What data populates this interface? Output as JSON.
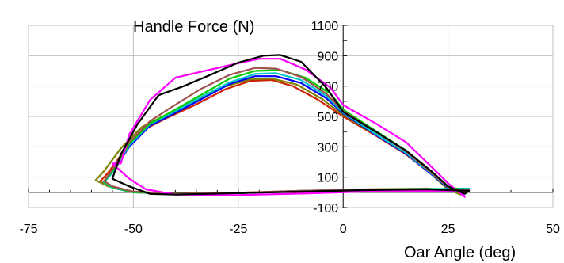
{
  "chart_data": {
    "type": "line",
    "ylabel": "Handle Force (N)",
    "xlabel": "Oar Angle (deg)",
    "xlim": [
      -75,
      50
    ],
    "ylim": [
      -100,
      1100
    ],
    "x_ticks": [
      -75,
      -50,
      -25,
      0,
      25,
      50
    ],
    "y_tick_labels": [
      -100,
      100,
      300,
      500,
      700,
      900,
      1100
    ],
    "y_grid": [
      100,
      300,
      500,
      700,
      900,
      1100
    ],
    "x_grid": [
      -50,
      -25,
      25
    ],
    "grid": true,
    "legend": "none",
    "series": [
      {
        "color": "#cc2200",
        "points": [
          [
            -58,
            70
          ],
          [
            -56,
            130
          ],
          [
            -52,
            280
          ],
          [
            -47,
            420
          ],
          [
            -42,
            490
          ],
          [
            -35,
            580
          ],
          [
            -28,
            680
          ],
          [
            -22,
            735
          ],
          [
            -17,
            740
          ],
          [
            -12,
            700
          ],
          [
            -6,
            610
          ],
          [
            0,
            500
          ],
          [
            8,
            370
          ],
          [
            15,
            250
          ],
          [
            21,
            120
          ],
          [
            25,
            30
          ],
          [
            29,
            -5
          ],
          [
            30,
            15
          ],
          [
            20,
            20
          ],
          [
            5,
            15
          ],
          [
            -10,
            5
          ],
          [
            -25,
            -5
          ],
          [
            -40,
            -10
          ],
          [
            -50,
            5
          ],
          [
            -55,
            35
          ],
          [
            -58,
            70
          ]
        ]
      },
      {
        "color": "#808000",
        "points": [
          [
            -59,
            80
          ],
          [
            -57,
            140
          ],
          [
            -53,
            290
          ],
          [
            -48,
            430
          ],
          [
            -43,
            500
          ],
          [
            -36,
            590
          ],
          [
            -29,
            690
          ],
          [
            -22,
            745
          ],
          [
            -17,
            750
          ],
          [
            -11,
            710
          ],
          [
            -5,
            615
          ],
          [
            0,
            510
          ],
          [
            8,
            375
          ],
          [
            15,
            255
          ],
          [
            21,
            120
          ],
          [
            25,
            20
          ],
          [
            28,
            -15
          ],
          [
            29,
            10
          ],
          [
            20,
            25
          ],
          [
            5,
            20
          ],
          [
            -10,
            10
          ],
          [
            -25,
            -3
          ],
          [
            -40,
            -10
          ],
          [
            -51,
            5
          ],
          [
            -56,
            40
          ],
          [
            -59,
            80
          ]
        ]
      },
      {
        "color": "#0000ff",
        "points": [
          [
            -57,
            70
          ],
          [
            -55,
            130
          ],
          [
            -51,
            300
          ],
          [
            -46,
            440
          ],
          [
            -41,
            510
          ],
          [
            -34,
            610
          ],
          [
            -27,
            715
          ],
          [
            -21,
            765
          ],
          [
            -16,
            765
          ],
          [
            -10,
            720
          ],
          [
            -4,
            620
          ],
          [
            0,
            520
          ],
          [
            8,
            375
          ],
          [
            15,
            255
          ],
          [
            21,
            120
          ],
          [
            25,
            30
          ],
          [
            29,
            5
          ],
          [
            30,
            20
          ],
          [
            20,
            20
          ],
          [
            5,
            18
          ],
          [
            -10,
            8
          ],
          [
            -25,
            -5
          ],
          [
            -40,
            -12
          ],
          [
            -50,
            0
          ],
          [
            -55,
            30
          ],
          [
            -57,
            70
          ]
        ]
      },
      {
        "color": "#00c8c8",
        "points": [
          [
            -57,
            65
          ],
          [
            -55,
            130
          ],
          [
            -51,
            310
          ],
          [
            -46,
            450
          ],
          [
            -41,
            520
          ],
          [
            -34,
            625
          ],
          [
            -27,
            725
          ],
          [
            -21,
            780
          ],
          [
            -16,
            785
          ],
          [
            -10,
            740
          ],
          [
            -4,
            635
          ],
          [
            0,
            525
          ],
          [
            8,
            380
          ],
          [
            15,
            260
          ],
          [
            21,
            125
          ],
          [
            25,
            35
          ],
          [
            29,
            10
          ],
          [
            30,
            25
          ],
          [
            20,
            22
          ],
          [
            5,
            18
          ],
          [
            -10,
            10
          ],
          [
            -25,
            -5
          ],
          [
            -40,
            -12
          ],
          [
            -50,
            0
          ],
          [
            -55,
            30
          ],
          [
            -57,
            65
          ]
        ]
      },
      {
        "color": "#00cc00",
        "points": [
          [
            -57,
            70
          ],
          [
            -55,
            140
          ],
          [
            -51,
            320
          ],
          [
            -46,
            455
          ],
          [
            -41,
            530
          ],
          [
            -34,
            640
          ],
          [
            -27,
            750
          ],
          [
            -21,
            800
          ],
          [
            -15,
            805
          ],
          [
            -9,
            755
          ],
          [
            -3,
            650
          ],
          [
            0,
            545
          ],
          [
            8,
            400
          ],
          [
            15,
            275
          ],
          [
            21,
            130
          ],
          [
            25,
            40
          ],
          [
            29,
            10
          ],
          [
            30,
            20
          ],
          [
            20,
            20
          ],
          [
            5,
            15
          ],
          [
            -10,
            8
          ],
          [
            -25,
            -5
          ],
          [
            -40,
            -10
          ],
          [
            -50,
            0
          ],
          [
            -55,
            35
          ],
          [
            -57,
            70
          ]
        ]
      },
      {
        "color": "#a05050",
        "points": [
          [
            -57,
            75
          ],
          [
            -55,
            150
          ],
          [
            -51,
            330
          ],
          [
            -46,
            470
          ],
          [
            -41,
            560
          ],
          [
            -34,
            680
          ],
          [
            -27,
            775
          ],
          [
            -21,
            820
          ],
          [
            -16,
            815
          ],
          [
            -10,
            760
          ],
          [
            -4,
            650
          ],
          [
            0,
            535
          ],
          [
            8,
            395
          ],
          [
            15,
            270
          ],
          [
            21,
            130
          ],
          [
            25,
            35
          ],
          [
            29,
            0
          ],
          [
            30,
            15
          ],
          [
            20,
            20
          ],
          [
            5,
            18
          ],
          [
            -10,
            10
          ],
          [
            -25,
            -3
          ],
          [
            -40,
            -10
          ],
          [
            -50,
            5
          ],
          [
            -55,
            40
          ],
          [
            -57,
            75
          ]
        ]
      },
      {
        "color": "#ff00ff",
        "points": [
          [
            -53,
            190
          ],
          [
            -51,
            380
          ],
          [
            -46,
            610
          ],
          [
            -40,
            755
          ],
          [
            -33,
            800
          ],
          [
            -26,
            845
          ],
          [
            -20,
            880
          ],
          [
            -15,
            880
          ],
          [
            -9,
            810
          ],
          [
            -3,
            690
          ],
          [
            0,
            575
          ],
          [
            8,
            450
          ],
          [
            15,
            330
          ],
          [
            21,
            170
          ],
          [
            25,
            60
          ],
          [
            29,
            -30
          ],
          [
            28,
            10
          ],
          [
            20,
            10
          ],
          [
            5,
            5
          ],
          [
            -10,
            -8
          ],
          [
            -25,
            -18
          ],
          [
            -40,
            -15
          ],
          [
            -47,
            20
          ],
          [
            -51,
            90
          ],
          [
            -55,
            190
          ],
          [
            -53,
            190
          ]
        ]
      },
      {
        "color": "#000000",
        "points": [
          [
            -55,
            90
          ],
          [
            -53,
            250
          ],
          [
            -49,
            450
          ],
          [
            -44,
            640
          ],
          [
            -38,
            700
          ],
          [
            -32,
            770
          ],
          [
            -25,
            855
          ],
          [
            -19,
            900
          ],
          [
            -15,
            905
          ],
          [
            -10,
            860
          ],
          [
            -4,
            690
          ],
          [
            0,
            530
          ],
          [
            8,
            395
          ],
          [
            15,
            275
          ],
          [
            21,
            140
          ],
          [
            25,
            40
          ],
          [
            29,
            -10
          ],
          [
            30,
            10
          ],
          [
            20,
            20
          ],
          [
            5,
            15
          ],
          [
            -10,
            5
          ],
          [
            -25,
            -5
          ],
          [
            -40,
            -15
          ],
          [
            -46,
            -10
          ],
          [
            -51,
            40
          ],
          [
            -55,
            90
          ]
        ]
      }
    ]
  }
}
